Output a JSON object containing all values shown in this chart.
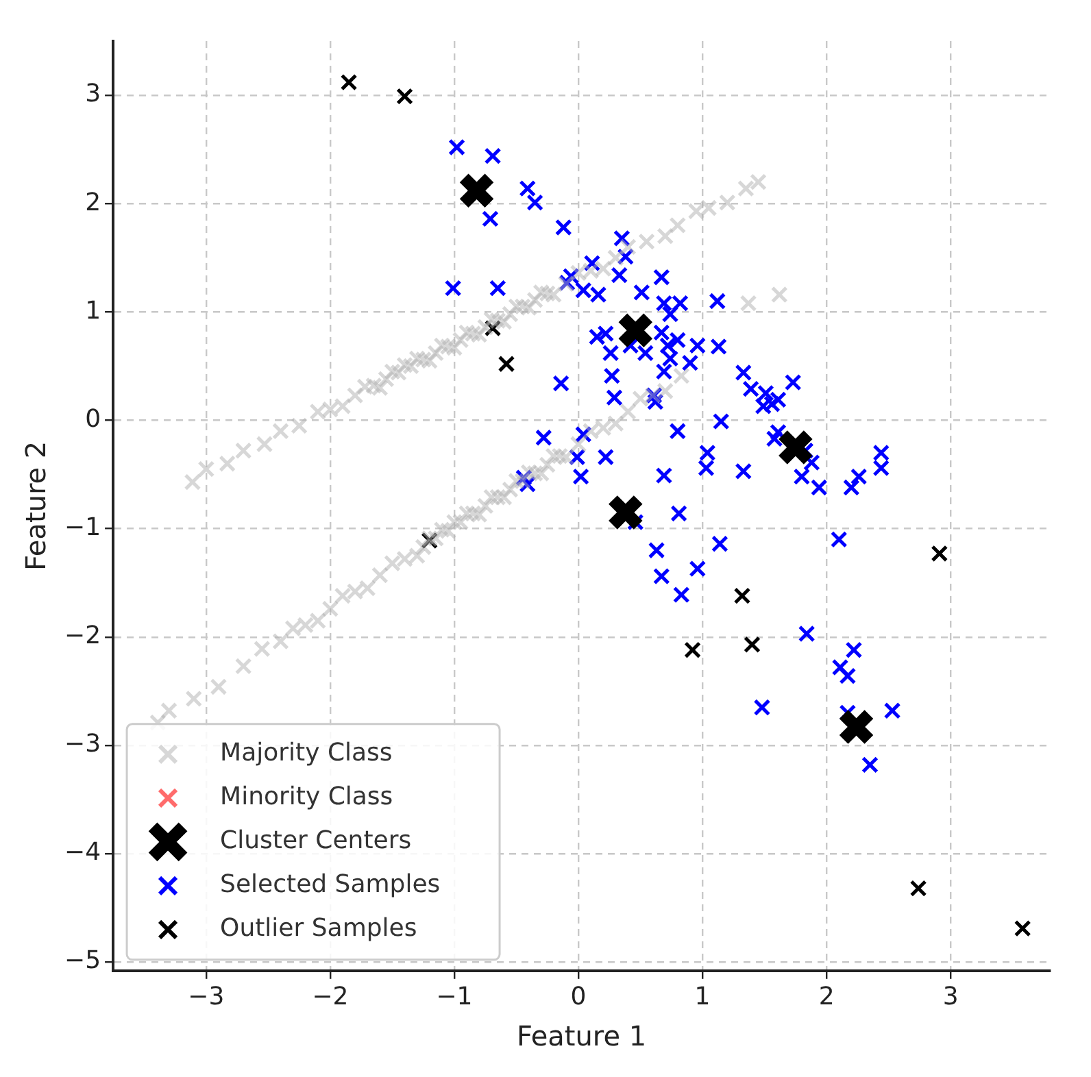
{
  "chart_data": {
    "type": "scatter",
    "xlabel": "Feature 1",
    "ylabel": "Feature 2",
    "xlim": [
      -3.75,
      3.8
    ],
    "ylim": [
      -5.08,
      3.5
    ],
    "xticks": [
      -3,
      -2,
      -1,
      0,
      1,
      2,
      3
    ],
    "yticks": [
      -5,
      -4,
      -3,
      -2,
      -1,
      0,
      1,
      2,
      3
    ],
    "grid": true,
    "legend": "bottom left",
    "marker": "cross",
    "series": [
      {
        "name": "Majority Class",
        "color": "#b0b0b0",
        "x": [
          -3.11,
          -3.0,
          -2.83,
          -2.7,
          -2.53,
          -2.4,
          -2.25,
          -2.1,
          -2.0,
          -1.9,
          -1.8,
          -1.72,
          -1.65,
          -1.6,
          -1.55,
          -1.5,
          -1.45,
          -1.4,
          -1.35,
          -1.3,
          -1.25,
          -1.2,
          -1.15,
          -1.1,
          -1.05,
          -1.0,
          -0.95,
          -0.9,
          -0.85,
          -0.8,
          -0.75,
          -0.7,
          -0.65,
          -0.6,
          -0.55,
          -0.5,
          -0.45,
          -0.4,
          -0.35,
          -0.3,
          -0.25,
          -0.2,
          -0.1,
          0.0,
          0.1,
          0.2,
          0.3,
          0.4,
          0.55,
          0.7,
          0.8,
          0.95,
          1.05,
          1.2,
          1.35,
          1.45,
          1.37,
          1.62,
          -3.39,
          -3.3,
          -3.1,
          -2.9,
          -2.7,
          -2.55,
          -2.4,
          -2.3,
          -2.2,
          -2.1,
          -2.0,
          -1.9,
          -1.8,
          -1.7,
          -1.6,
          -1.5,
          -1.4,
          -1.3,
          -1.25,
          -1.2,
          -1.15,
          -1.1,
          -1.05,
          -1.0,
          -0.95,
          -0.9,
          -0.85,
          -0.8,
          -0.75,
          -0.7,
          -0.65,
          -0.6,
          -0.55,
          -0.5,
          -0.45,
          -0.4,
          -0.35,
          -0.3,
          -0.25,
          -0.2,
          -0.15,
          -0.1,
          0.0,
          0.1,
          0.2,
          0.3,
          0.4,
          0.5,
          0.6,
          0.7,
          0.83
        ],
        "values": [
          -0.57,
          -0.45,
          -0.4,
          -0.28,
          -0.22,
          -0.1,
          -0.05,
          0.08,
          0.1,
          0.13,
          0.23,
          0.31,
          0.32,
          0.3,
          0.38,
          0.45,
          0.44,
          0.51,
          0.5,
          0.57,
          0.56,
          0.55,
          0.62,
          0.69,
          0.68,
          0.67,
          0.74,
          0.81,
          0.8,
          0.79,
          0.86,
          0.93,
          0.92,
          0.91,
          0.98,
          1.05,
          1.05,
          1.04,
          1.11,
          1.18,
          1.17,
          1.16,
          1.26,
          1.36,
          1.38,
          1.4,
          1.5,
          1.6,
          1.65,
          1.7,
          1.8,
          1.93,
          1.96,
          2.01,
          2.14,
          2.2,
          1.08,
          1.16,
          -2.79,
          -2.68,
          -2.57,
          -2.46,
          -2.27,
          -2.11,
          -2.04,
          -1.92,
          -1.89,
          -1.85,
          -1.74,
          -1.62,
          -1.58,
          -1.55,
          -1.43,
          -1.32,
          -1.28,
          -1.25,
          -1.17,
          -1.09,
          -1.09,
          -1.01,
          -1.02,
          -0.94,
          -0.94,
          -0.86,
          -0.86,
          -0.87,
          -0.79,
          -0.71,
          -0.71,
          -0.71,
          -0.64,
          -0.56,
          -0.56,
          -0.48,
          -0.49,
          -0.49,
          -0.41,
          -0.33,
          -0.33,
          -0.34,
          -0.22,
          -0.1,
          -0.07,
          -0.03,
          0.08,
          0.2,
          0.23,
          0.27,
          0.41
        ]
      },
      {
        "name": "Minority Class",
        "color": "#ff6b6b"
      },
      {
        "name": "Cluster Centers",
        "color": "#000000",
        "x": [
          -0.82,
          0.46,
          1.75,
          0.38,
          2.24
        ],
        "values": [
          2.12,
          0.83,
          -0.25,
          -0.85,
          -2.83
        ]
      },
      {
        "name": "Selected Samples",
        "color": "#0000ff",
        "x": [
          -0.98,
          -0.69,
          -0.41,
          -0.35,
          -0.71,
          -0.12,
          -1.01,
          -0.65,
          -0.14,
          -0.06,
          0.35,
          0.38,
          0.11,
          -0.09,
          0.16,
          0.04,
          0.33,
          0.67,
          0.51,
          1.12,
          0.69,
          0.82,
          0.74,
          0.15,
          0.22,
          0.26,
          0.42,
          0.54,
          0.67,
          0.72,
          0.8,
          0.74,
          0.69,
          0.96,
          0.9,
          1.13,
          0.27,
          0.29,
          0.61,
          0.62,
          1.33,
          1.39,
          1.51,
          1.56,
          1.61,
          1.15,
          0.8,
          -0.28,
          0.04,
          1.73,
          1.49,
          -0.01,
          0.02,
          0.22,
          0.69,
          1.04,
          1.03,
          1.33,
          1.58,
          1.61,
          1.83,
          1.88,
          1.8,
          1.94,
          2.2,
          2.26,
          2.44,
          2.44,
          0.81,
          0.46,
          0.63,
          1.14,
          2.1,
          0.67,
          0.96,
          0.83,
          -0.41,
          -0.44,
          1.84,
          2.22,
          2.11,
          2.17,
          1.48,
          2.17,
          2.53,
          2.35
        ],
        "values": [
          2.52,
          2.44,
          2.14,
          2.01,
          1.86,
          1.78,
          1.22,
          1.22,
          0.34,
          1.33,
          1.68,
          1.51,
          1.45,
          1.27,
          1.16,
          1.2,
          1.34,
          1.32,
          1.18,
          1.1,
          1.08,
          1.08,
          0.98,
          0.77,
          0.8,
          0.62,
          0.69,
          0.62,
          0.81,
          0.69,
          0.74,
          0.57,
          0.45,
          0.69,
          0.53,
          0.68,
          0.41,
          0.21,
          0.23,
          0.17,
          0.44,
          0.29,
          0.25,
          0.15,
          0.19,
          -0.01,
          -0.1,
          -0.16,
          -0.13,
          0.35,
          0.13,
          -0.34,
          -0.52,
          -0.34,
          -0.51,
          -0.3,
          -0.44,
          -0.47,
          -0.17,
          -0.11,
          -0.28,
          -0.39,
          -0.52,
          -0.62,
          -0.62,
          -0.52,
          -0.3,
          -0.44,
          -0.86,
          -0.94,
          -1.2,
          -1.14,
          -1.1,
          -1.44,
          -1.37,
          -1.61,
          -0.59,
          -0.53,
          -1.97,
          -2.12,
          -2.28,
          -2.36,
          -2.65,
          -2.7,
          -2.68,
          -3.18
        ]
      },
      {
        "name": "Outlier Samples",
        "color": "#000000",
        "x": [
          -1.85,
          -1.4,
          -0.69,
          -0.58,
          -1.2,
          1.32,
          1.4,
          0.92,
          2.91,
          2.74,
          3.58
        ],
        "values": [
          3.12,
          2.99,
          0.85,
          0.52,
          -1.11,
          -1.62,
          -2.07,
          -2.12,
          -1.23,
          -4.32,
          -4.69
        ]
      }
    ]
  }
}
